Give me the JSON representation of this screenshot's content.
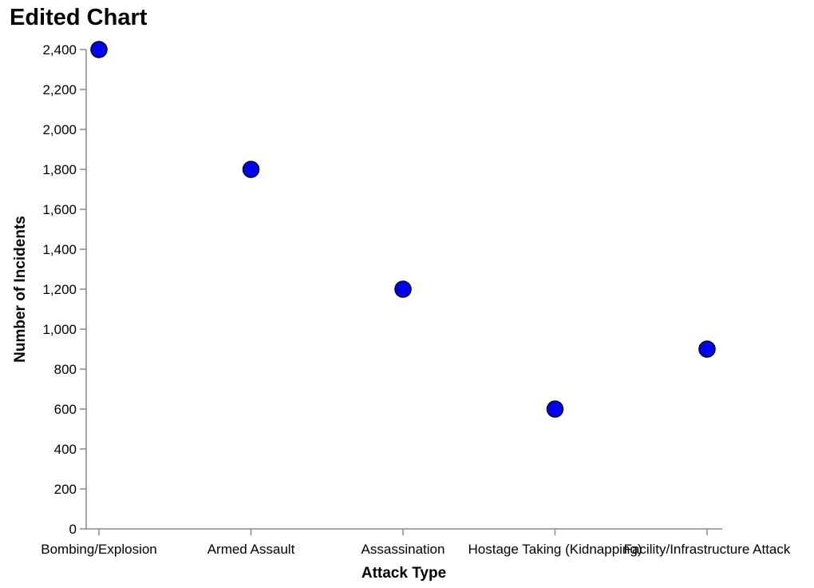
{
  "chart_data": {
    "type": "scatter",
    "title": "Edited Chart",
    "xlabel": "Attack Type",
    "ylabel": "Number of Incidents",
    "categories": [
      "Bombing/Explosion",
      "Armed Assault",
      "Assassination",
      "Hostage Taking (Kidnapping)",
      "Facility/Infrastructure Attack"
    ],
    "values": [
      2400,
      1800,
      1200,
      600,
      900
    ],
    "ylim": [
      0,
      2400
    ],
    "yticks": [
      0,
      200,
      400,
      600,
      800,
      1000,
      1200,
      1400,
      1600,
      1800,
      2000,
      2200,
      2400
    ],
    "grid": false,
    "point_color": "#0000ff",
    "point_stroke": "#000000"
  }
}
